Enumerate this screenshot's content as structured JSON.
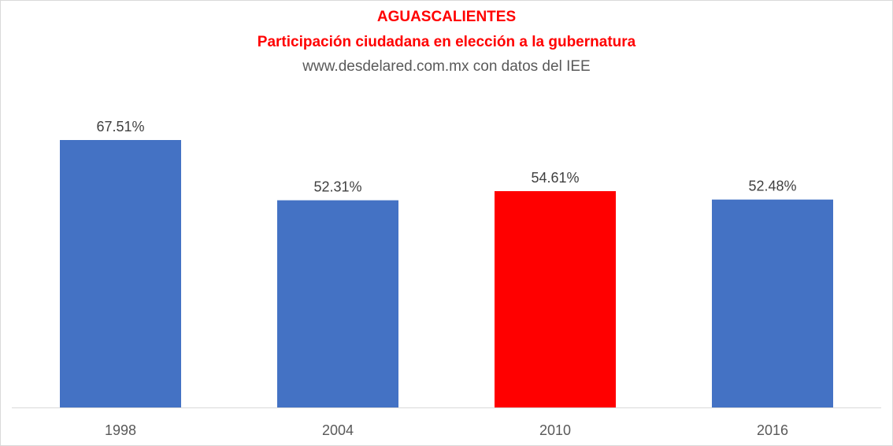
{
  "chart_data": {
    "type": "bar",
    "title": "AGUASCALIENTES",
    "subtitle": "Participación ciudadana en elección a la gubernatura",
    "source": "www.desdelared.com.mx con datos del IEE",
    "categories": [
      "1998",
      "2004",
      "2010",
      "2016"
    ],
    "values": [
      67.51,
      52.31,
      54.61,
      52.48
    ],
    "data_labels": [
      "67.51%",
      "52.31%",
      "54.61%",
      "52.48%"
    ],
    "bar_colors": [
      "#4472c4",
      "#4472c4",
      "#ff0000",
      "#4472c4"
    ],
    "xlabel": "",
    "ylabel": "",
    "ylim": [
      0,
      70
    ],
    "grid": false,
    "legend": "none",
    "title_color": "#ff0000"
  }
}
